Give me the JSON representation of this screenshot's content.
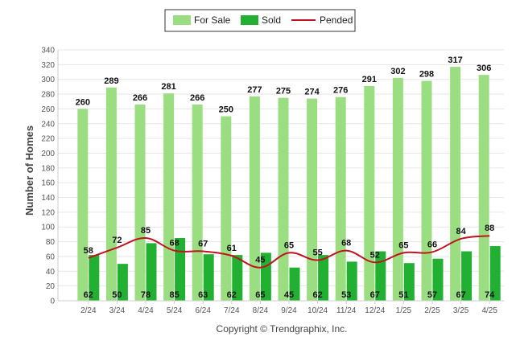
{
  "chart_data": {
    "type": "bar",
    "categories": [
      "2/24",
      "3/24",
      "4/24",
      "5/24",
      "6/24",
      "7/24",
      "8/24",
      "9/24",
      "10/24",
      "11/24",
      "12/24",
      "1/25",
      "2/25",
      "3/25",
      "4/25"
    ],
    "series": [
      {
        "name": "For Sale",
        "type": "bar",
        "color": "#9bde82",
        "values": [
          260,
          289,
          266,
          281,
          266,
          250,
          277,
          275,
          274,
          276,
          291,
          302,
          298,
          317,
          306
        ]
      },
      {
        "name": "Sold",
        "type": "bar",
        "color": "#22b032",
        "values": [
          62,
          50,
          78,
          85,
          63,
          62,
          65,
          45,
          62,
          53,
          67,
          51,
          57,
          67,
          74
        ]
      },
      {
        "name": "Pended",
        "type": "line",
        "color": "#c1121f",
        "values": [
          58,
          72,
          85,
          68,
          67,
          61,
          45,
          65,
          55,
          68,
          52,
          65,
          66,
          84,
          88
        ]
      }
    ],
    "xlabel": "",
    "ylabel": "Number of Homes",
    "ylim": [
      0,
      340
    ],
    "yticks": [
      0,
      20,
      40,
      60,
      80,
      100,
      120,
      140,
      160,
      180,
      200,
      220,
      240,
      260,
      280,
      300,
      320,
      340
    ],
    "grid": true,
    "legend": "top-center"
  },
  "footer": {
    "copyright": "Copyright © Trendgraphix, Inc."
  }
}
